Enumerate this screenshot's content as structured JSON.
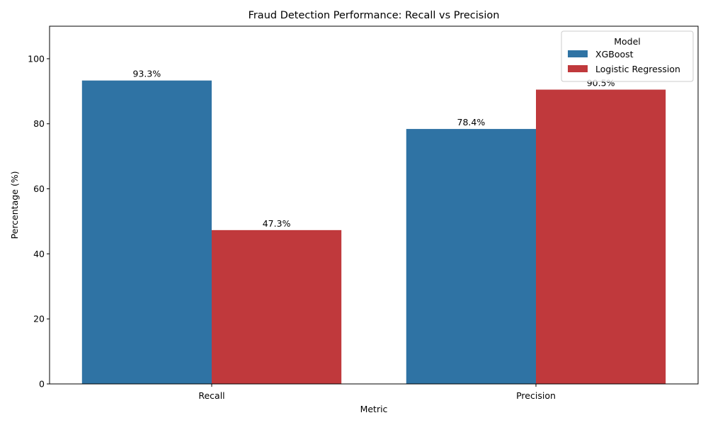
{
  "chart_data": {
    "type": "bar",
    "title": "Fraud Detection Performance: Recall vs Precision",
    "xlabel": "Metric",
    "ylabel": "Percentage (%)",
    "categories": [
      "Recall",
      "Precision"
    ],
    "series": [
      {
        "name": "XGBoost",
        "values": [
          93.3,
          78.4
        ],
        "color": "#2f73a4"
      },
      {
        "name": "Logistic Regression",
        "values": [
          47.3,
          90.5
        ],
        "color": "#c0393c"
      }
    ],
    "data_labels": [
      [
        "93.3%",
        "78.4%"
      ],
      [
        "47.3%",
        "90.5%"
      ]
    ],
    "ylim": [
      0,
      110
    ],
    "yticks": [
      0,
      20,
      40,
      60,
      80,
      100
    ],
    "grid": false,
    "legend": {
      "title": "Model",
      "position": "top-right"
    }
  }
}
